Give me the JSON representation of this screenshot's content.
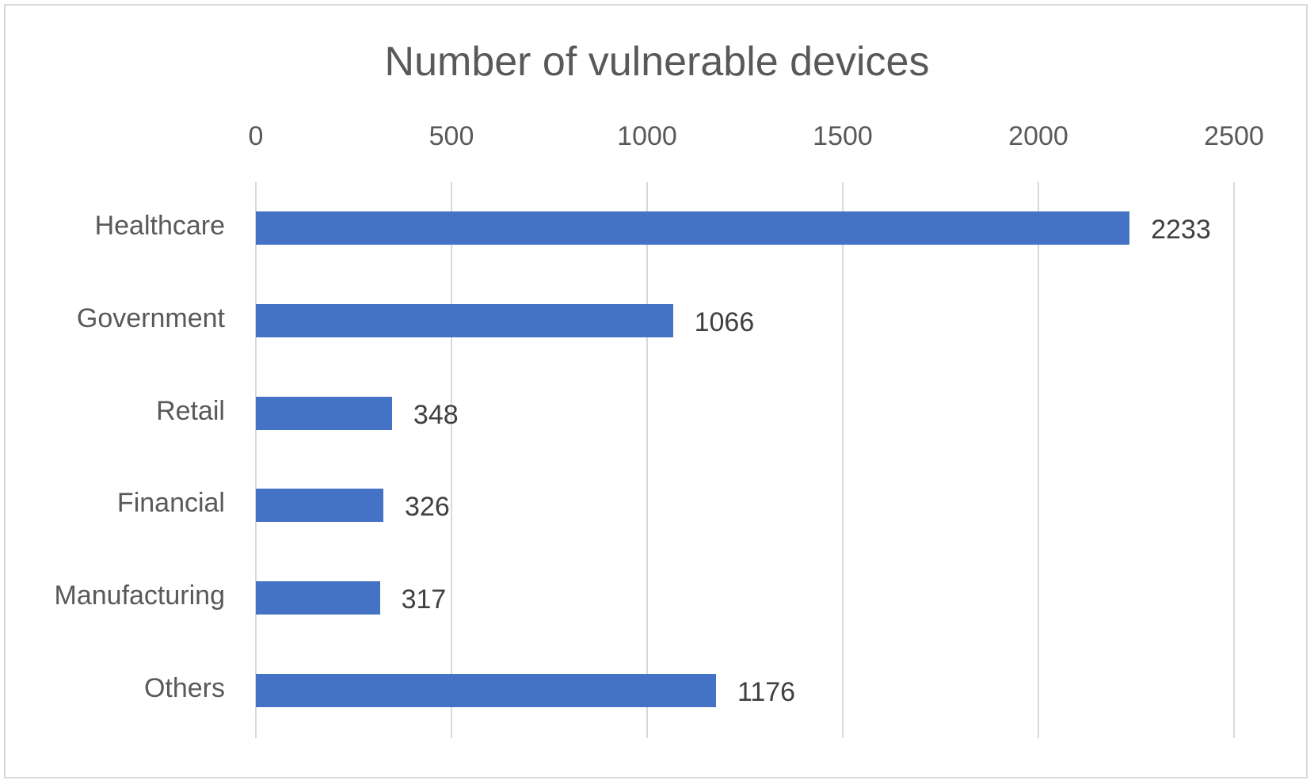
{
  "chart_data": {
    "type": "bar",
    "orientation": "horizontal",
    "title": "Number of vulnerable devices",
    "xlabel": "",
    "ylabel": "",
    "categories": [
      "Healthcare",
      "Government",
      "Retail",
      "Financial",
      "Manufacturing",
      "Others"
    ],
    "values": [
      2233,
      1066,
      348,
      326,
      317,
      1176
    ],
    "data_labels": [
      "2233",
      "1066",
      "348",
      "326",
      "317",
      "1176"
    ],
    "xlim": [
      0,
      2500
    ],
    "x_ticks": [
      "0",
      "500",
      "1000",
      "1500",
      "2000",
      "2500"
    ],
    "x_tick_values": [
      0,
      500,
      1000,
      1500,
      2000,
      2500
    ],
    "x_axis_position": "top",
    "grid": true,
    "legend": false,
    "bar_color": "#4472c4",
    "gridline_color": "#d9d9d9",
    "text_color": "#595959",
    "data_label_color": "#404040"
  }
}
